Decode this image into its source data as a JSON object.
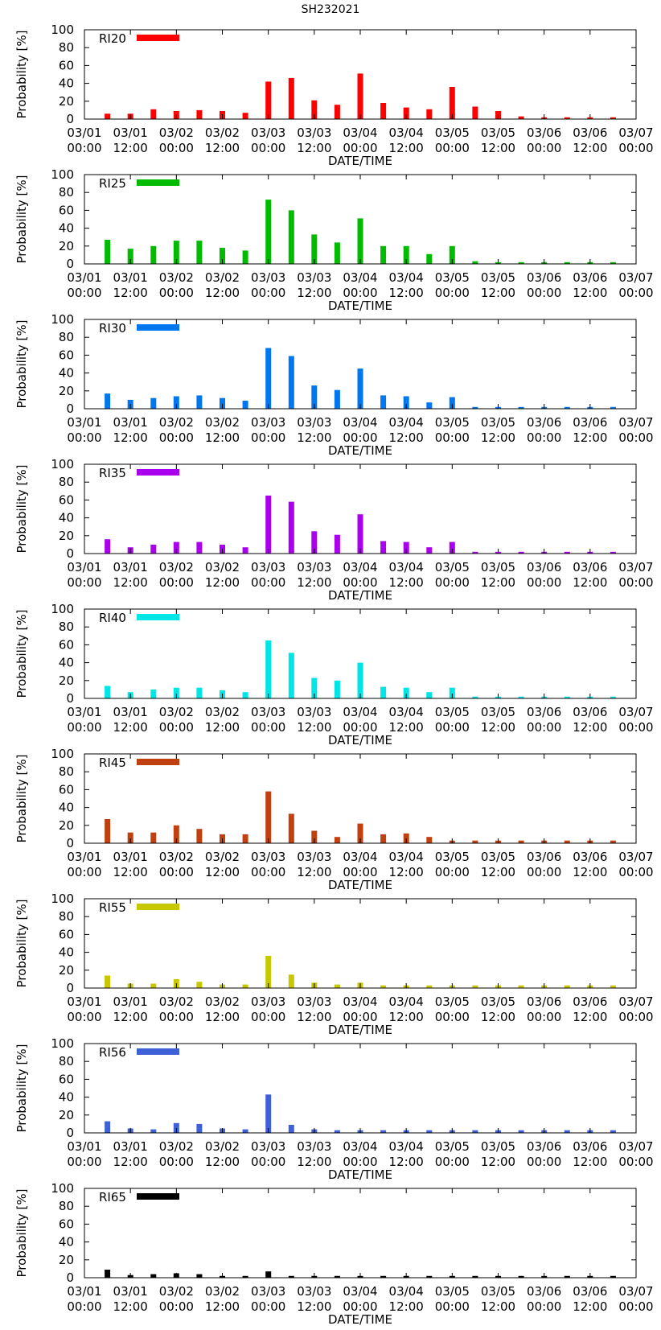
{
  "title": "SH232021",
  "chart_data": {
    "type": "bar",
    "ylabel": "Probability [%]",
    "xlabel": "DATE/TIME",
    "ylim": [
      0,
      100
    ],
    "yticks": [
      0,
      20,
      40,
      60,
      80,
      100
    ],
    "xtick_labels": [
      [
        "03/01",
        "00:00"
      ],
      [
        "03/01",
        "12:00"
      ],
      [
        "03/02",
        "00:00"
      ],
      [
        "03/02",
        "12:00"
      ],
      [
        "03/03",
        "00:00"
      ],
      [
        "03/03",
        "12:00"
      ],
      [
        "03/04",
        "00:00"
      ],
      [
        "03/04",
        "12:00"
      ],
      [
        "03/05",
        "00:00"
      ],
      [
        "03/05",
        "12:00"
      ],
      [
        "03/06",
        "00:00"
      ],
      [
        "03/06",
        "12:00"
      ],
      [
        "03/07",
        "00:00"
      ]
    ],
    "x_hours_range": [
      0,
      144
    ],
    "bar_hours": [
      6,
      12,
      18,
      24,
      30,
      36,
      42,
      48,
      54,
      60,
      66,
      72,
      78,
      84,
      90,
      96,
      102,
      108,
      114,
      120,
      126,
      132,
      138
    ],
    "panels": [
      {
        "name": "RI20",
        "color": "#ff0000",
        "values": [
          6,
          6,
          11,
          9,
          10,
          9,
          7,
          42,
          46,
          21,
          16,
          51,
          18,
          13,
          11,
          36,
          14,
          9,
          3,
          2,
          2,
          2,
          2
        ]
      },
      {
        "name": "RI25",
        "color": "#00bb00",
        "values": [
          27,
          17,
          20,
          26,
          26,
          18,
          15,
          72,
          60,
          33,
          24,
          51,
          20,
          20,
          11,
          20,
          3,
          2,
          2,
          2,
          2,
          2,
          2
        ]
      },
      {
        "name": "RI30",
        "color": "#0077ee",
        "values": [
          17,
          10,
          12,
          14,
          15,
          12,
          9,
          68,
          59,
          26,
          21,
          45,
          15,
          14,
          7,
          13,
          2,
          2,
          2,
          2,
          2,
          2,
          2
        ]
      },
      {
        "name": "RI35",
        "color": "#aa00ee",
        "values": [
          16,
          7,
          10,
          13,
          13,
          10,
          7,
          65,
          58,
          25,
          21,
          44,
          14,
          13,
          7,
          13,
          2,
          2,
          2,
          2,
          2,
          2,
          2
        ]
      },
      {
        "name": "RI40",
        "color": "#00e5e5",
        "values": [
          14,
          7,
          10,
          12,
          12,
          9,
          7,
          65,
          51,
          23,
          20,
          40,
          13,
          12,
          7,
          12,
          2,
          2,
          2,
          2,
          2,
          2,
          2
        ]
      },
      {
        "name": "RI45",
        "color": "#c04010",
        "values": [
          27,
          12,
          12,
          20,
          16,
          10,
          10,
          58,
          33,
          14,
          7,
          22,
          10,
          11,
          7,
          3,
          3,
          3,
          3,
          3,
          3,
          3,
          3
        ]
      },
      {
        "name": "RI55",
        "color": "#c8c800",
        "values": [
          14,
          5,
          5,
          10,
          7,
          4,
          4,
          36,
          15,
          6,
          4,
          6,
          3,
          3,
          3,
          3,
          3,
          3,
          3,
          3,
          3,
          3,
          3
        ]
      },
      {
        "name": "RI56",
        "color": "#4060d8",
        "values": [
          13,
          5,
          4,
          11,
          10,
          5,
          4,
          43,
          9,
          4,
          3,
          3,
          3,
          3,
          3,
          3,
          3,
          3,
          3,
          3,
          3,
          3,
          3
        ]
      },
      {
        "name": "RI65",
        "color": "#000000",
        "values": [
          9,
          3,
          4,
          5,
          4,
          2,
          2,
          7,
          2,
          2,
          2,
          2,
          2,
          2,
          2,
          2,
          2,
          2,
          2,
          2,
          2,
          2,
          2
        ]
      }
    ]
  }
}
